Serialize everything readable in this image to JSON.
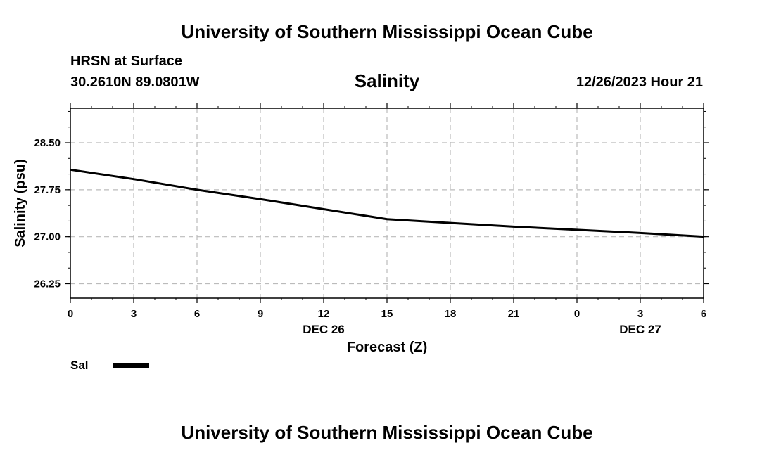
{
  "header": {
    "title_top": "University of Southern Mississippi Ocean Cube",
    "station": "HRSN at Surface",
    "coords": "30.2610N  89.0801W",
    "chart_title": "Salinity",
    "timestamp": "12/26/2023 Hour 21",
    "title_bottom": "University of Southern Mississippi Ocean Cube"
  },
  "legend": {
    "label": "Sal",
    "color": "#000000"
  },
  "chart_data": {
    "type": "line",
    "title": "Salinity",
    "ylabel": "Salinity (psu)",
    "xlabel": "Forecast (Z)",
    "x_tick_labels": [
      "0",
      "3",
      "6",
      "9",
      "12",
      "15",
      "18",
      "21",
      "0",
      "3",
      "6"
    ],
    "date_labels": [
      {
        "label": "DEC 26",
        "tick_index": 4
      },
      {
        "label": "DEC 27",
        "tick_index": 9
      }
    ],
    "y_ticks": [
      26.25,
      27.0,
      27.75,
      28.5
    ],
    "y_tick_labels": [
      "26.25",
      "27.00",
      "27.75",
      "28.50"
    ],
    "ylim": [
      26.02,
      29.05
    ],
    "grid": true,
    "legend_position": "bottom-left",
    "series": [
      {
        "name": "Sal",
        "color": "#000000",
        "tick_index": [
          0,
          3,
          6,
          9,
          12,
          15,
          18,
          21,
          24,
          27,
          30
        ],
        "values": [
          28.07,
          27.92,
          27.75,
          27.6,
          27.44,
          27.28,
          27.22,
          27.16,
          27.11,
          27.06,
          27.0
        ]
      }
    ]
  }
}
